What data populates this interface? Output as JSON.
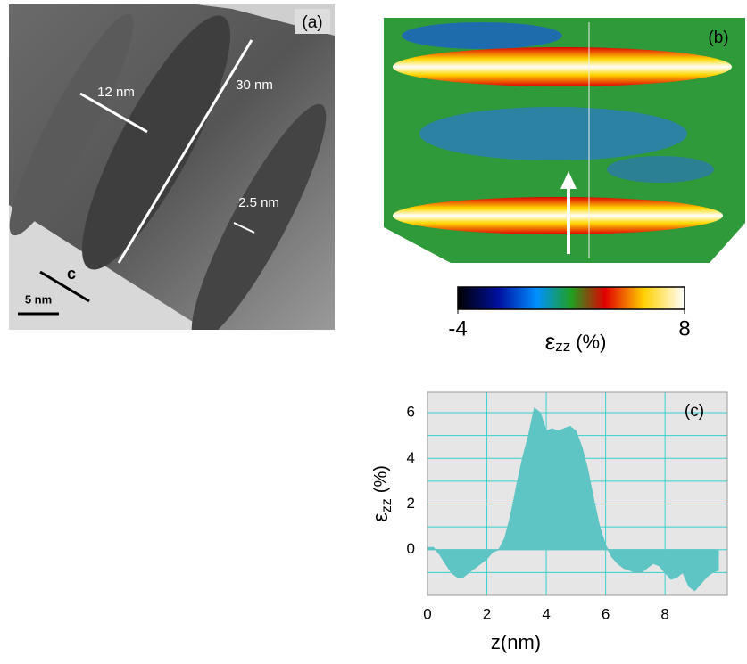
{
  "figure": {
    "panel_a": {
      "label": "(a)",
      "annotations": [
        "12 nm",
        "30 nm",
        "2.5 nm",
        "c"
      ],
      "scale_bar": "5 nm"
    },
    "panel_b": {
      "label": "(b)"
    },
    "colorbar": {
      "lim": [
        -4,
        8
      ],
      "ticks": [
        -4,
        8
      ],
      "symbol": "ε",
      "subscript": "zz",
      "unit": "(%)"
    }
  },
  "chart_data": {
    "type": "area",
    "label": "(c)",
    "xlabel": "z(nm)",
    "ylabel": {
      "symbol": "ε",
      "subscript": "zz",
      "unit": "(%)"
    },
    "color": "#5ec4c4",
    "x": [
      0,
      0.2,
      0.4,
      0.6,
      0.8,
      1.0,
      1.2,
      1.4,
      1.6,
      1.8,
      2.0,
      2.2,
      2.4,
      2.6,
      2.8,
      3.0,
      3.2,
      3.4,
      3.6,
      3.8,
      4.0,
      4.2,
      4.4,
      4.6,
      4.8,
      5.0,
      5.2,
      5.4,
      5.6,
      5.8,
      6.0,
      6.2,
      6.4,
      6.6,
      6.8,
      7.0,
      7.2,
      7.4,
      7.6,
      7.8,
      8.0,
      8.2,
      8.4,
      8.6,
      8.8,
      9.0,
      9.2,
      9.4,
      9.6,
      9.8
    ],
    "values": [
      0.1,
      0.1,
      -0.2,
      -0.6,
      -1.0,
      -1.2,
      -1.2,
      -1.0,
      -0.8,
      -0.6,
      -0.4,
      -0.1,
      0.0,
      0.5,
      1.5,
      2.8,
      4.0,
      5.0,
      6.2,
      6.0,
      5.2,
      5.3,
      5.2,
      5.3,
      5.4,
      5.2,
      4.5,
      3.5,
      2.2,
      1.0,
      0.2,
      -0.3,
      -0.6,
      -0.8,
      -0.9,
      -1.0,
      -1.0,
      -0.8,
      -0.6,
      -0.7,
      -1.0,
      -1.3,
      -1.2,
      -1.0,
      -1.6,
      -1.8,
      -1.5,
      -1.2,
      -1.0,
      -0.9
    ],
    "xlim": [
      0,
      10.1
    ],
    "ylim": [
      -2,
      6.9
    ],
    "xticks": [
      0,
      2,
      4,
      6,
      8
    ],
    "yticks": [
      0,
      2,
      4,
      6
    ],
    "yminor": [
      -1,
      1,
      3,
      5
    ],
    "grid": true
  }
}
